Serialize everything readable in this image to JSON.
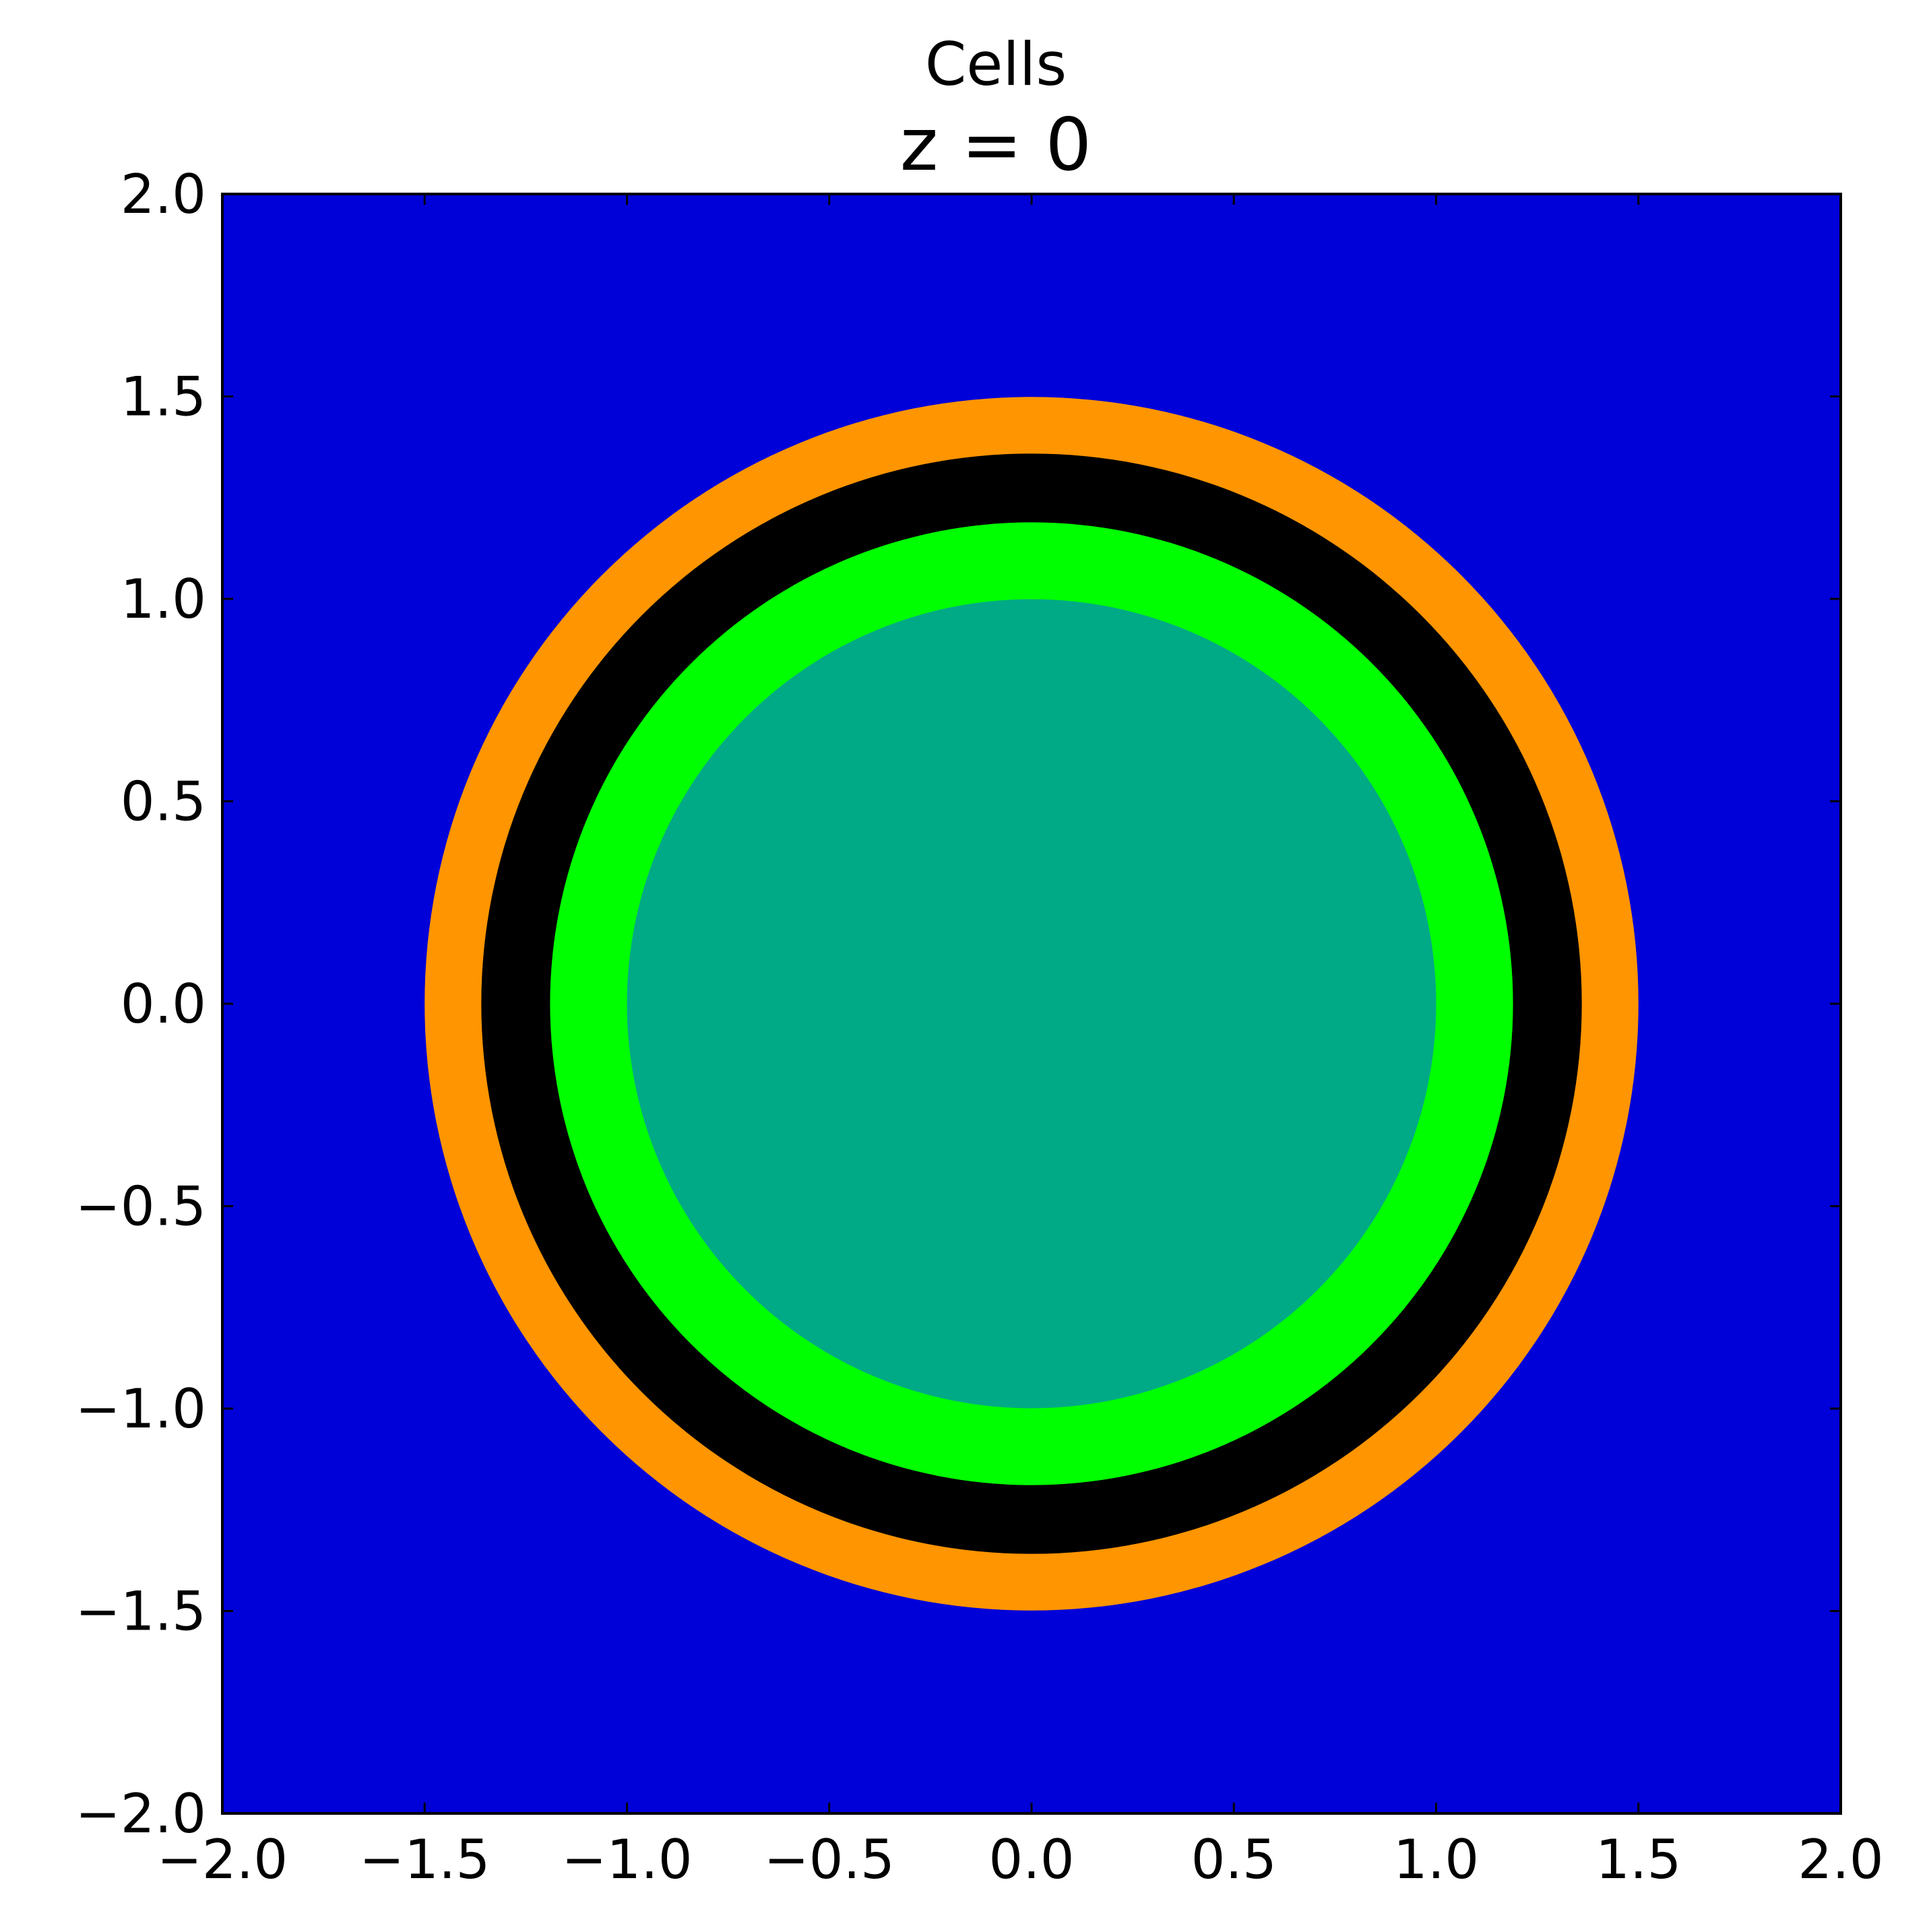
{
  "chart_data": {
    "type": "heatmap",
    "title": "Cells",
    "subtitle": "z = 0",
    "xlabel": "",
    "ylabel": "",
    "xlim": [
      -2.0,
      2.0
    ],
    "ylim": [
      -2.0,
      2.0
    ],
    "x_ticks": [
      -2.0,
      -1.5,
      -1.0,
      -0.5,
      0.0,
      0.5,
      1.0,
      1.5,
      2.0
    ],
    "y_ticks": [
      -2.0,
      -1.5,
      -1.0,
      -0.5,
      0.0,
      0.5,
      1.0,
      1.5,
      2.0
    ],
    "x_tick_labels": [
      "−2.0",
      "−1.5",
      "−1.0",
      "−0.5",
      "0.0",
      "0.5",
      "1.0",
      "1.5",
      "2.0"
    ],
    "y_tick_labels": [
      "−2.0",
      "−1.5",
      "−1.0",
      "−0.5",
      "0.0",
      "0.5",
      "1.0",
      "1.5",
      "2.0"
    ],
    "grid": false,
    "background_color": "#0000d8",
    "regions": [
      {
        "shape": "disk",
        "center": [
          0.0,
          0.0
        ],
        "radius": 1.5,
        "color": "#ff9500"
      },
      {
        "shape": "disk",
        "center": [
          0.0,
          0.0
        ],
        "radius": 1.36,
        "color": "#000000"
      },
      {
        "shape": "disk",
        "center": [
          0.0,
          0.0
        ],
        "radius": 1.19,
        "color": "#00ff00"
      },
      {
        "shape": "disk",
        "center": [
          0.0,
          0.0
        ],
        "radius": 1.0,
        "color": "#00aa86"
      }
    ]
  }
}
